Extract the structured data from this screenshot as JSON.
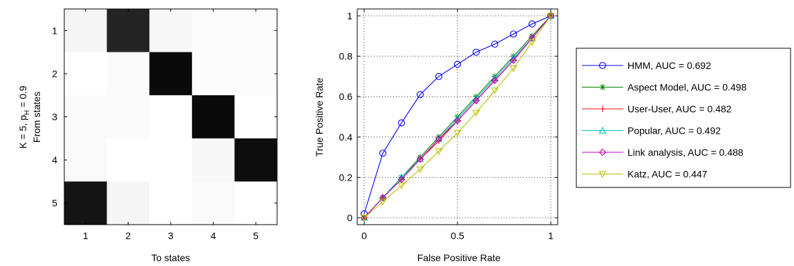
{
  "chart_data": [
    {
      "type": "heatmap",
      "title": "",
      "xlabel": "To states",
      "ylabel_parts": [
        "K = 5, p",
        "H",
        " = 0.9"
      ],
      "ylabel_inner": "From states",
      "x_categories": [
        "1",
        "2",
        "3",
        "4",
        "5"
      ],
      "y_categories": [
        "1",
        "2",
        "3",
        "4",
        "5"
      ],
      "colormap": "gray-reversed",
      "values": [
        [
          0.04,
          0.86,
          0.03,
          0.01,
          0.01
        ],
        [
          0.0,
          0.02,
          0.96,
          0.01,
          0.01
        ],
        [
          0.02,
          0.02,
          0.0,
          0.96,
          0.0
        ],
        [
          0.02,
          0.0,
          0.0,
          0.03,
          0.95
        ],
        [
          0.92,
          0.04,
          0.0,
          0.02,
          0.0
        ]
      ]
    },
    {
      "type": "line",
      "title": "",
      "xlabel": "False Positive Rate",
      "ylabel": "True Positive Rate",
      "xlim": [
        0,
        1
      ],
      "ylim": [
        0,
        1
      ],
      "xticks": [
        "0",
        "0.5",
        "1"
      ],
      "yticks": [
        "0",
        "0.2",
        "0.4",
        "0.6",
        "0.8",
        "1"
      ],
      "grid": true,
      "legend_position": "outside-right",
      "x": [
        0,
        0.1,
        0.2,
        0.3,
        0.4,
        0.5,
        0.6,
        0.7,
        0.8,
        0.9,
        1.0
      ],
      "series": [
        {
          "name": "HMM, AUC = 0.692",
          "color": "#0000ff",
          "marker": "circle",
          "values": [
            0.02,
            0.32,
            0.47,
            0.61,
            0.7,
            0.76,
            0.82,
            0.86,
            0.91,
            0.96,
            1.0
          ]
        },
        {
          "name": "Aspect Model, AUC = 0.498",
          "color": "#008000",
          "marker": "asterisk",
          "values": [
            0.0,
            0.1,
            0.2,
            0.3,
            0.4,
            0.5,
            0.6,
            0.7,
            0.8,
            0.9,
            1.0
          ]
        },
        {
          "name": "User-User, AUC = 0.482",
          "color": "#ff0000",
          "marker": "plus",
          "values": [
            0.0,
            0.1,
            0.19,
            0.29,
            0.38,
            0.48,
            0.58,
            0.68,
            0.78,
            0.89,
            1.0
          ]
        },
        {
          "name": "Popular, AUC = 0.492",
          "color": "#00bfbf",
          "marker": "triangle-up",
          "values": [
            0.0,
            0.1,
            0.2,
            0.29,
            0.39,
            0.49,
            0.59,
            0.69,
            0.79,
            0.89,
            1.0
          ]
        },
        {
          "name": "Link analysis, AUC = 0.488",
          "color": "#bf00bf",
          "marker": "diamond",
          "values": [
            0.0,
            0.1,
            0.19,
            0.29,
            0.39,
            0.48,
            0.58,
            0.68,
            0.78,
            0.89,
            1.0
          ]
        },
        {
          "name": "Katz, AUC = 0.447",
          "color": "#bfbf00",
          "marker": "triangle-down",
          "values": [
            0.0,
            0.08,
            0.16,
            0.24,
            0.33,
            0.42,
            0.52,
            0.63,
            0.74,
            0.87,
            1.0
          ]
        }
      ]
    }
  ]
}
